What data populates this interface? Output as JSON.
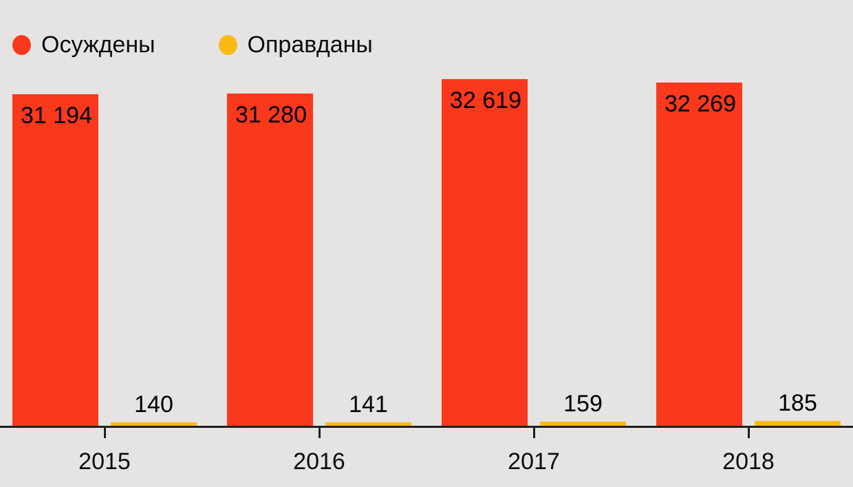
{
  "legend": {
    "items": [
      {
        "label": "Осуждены",
        "color": "#fa381c"
      },
      {
        "label": "Оправданы",
        "color": "#fab915"
      }
    ]
  },
  "chart_data": {
    "type": "bar",
    "categories": [
      "2015",
      "2016",
      "2017",
      "2018"
    ],
    "series": [
      {
        "name": "Осуждены",
        "color": "#fa381c",
        "values": [
          31194,
          31280,
          32619,
          32269
        ],
        "value_labels": [
          "31 194",
          "31 280",
          "32 619",
          "32 269"
        ]
      },
      {
        "name": "Оправданы",
        "color": "#fab915",
        "values": [
          140,
          141,
          159,
          185
        ],
        "value_labels": [
          "140",
          "141",
          "159",
          "185"
        ]
      }
    ],
    "title": "",
    "xlabel": "",
    "ylabel": "",
    "ylim": [
      0,
      40000
    ],
    "grid": false,
    "legend_position": "top-left",
    "value_labels_shown": true
  },
  "colors": {
    "background": "#e5e4e2",
    "axis": "#1f1f1f",
    "text": "#0d0d0d"
  }
}
